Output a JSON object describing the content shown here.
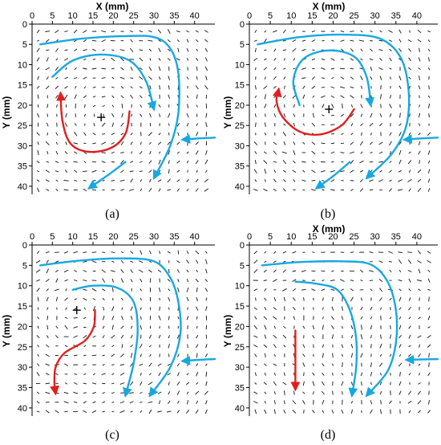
{
  "figure": {
    "x_axis_title": "X (mm)",
    "y_axis_title": "Y (mm)"
  },
  "chart_data": [
    {
      "type": "vector-field",
      "panel_label": "(a)",
      "xlabel": "X (mm)",
      "ylabel": "Y (mm)",
      "xlim": [
        0,
        45
      ],
      "ylim": [
        0,
        42
      ],
      "y_inverted": true,
      "grid": false,
      "x_ticks": [
        "0",
        "5",
        "10",
        "15",
        "20",
        "25",
        "30",
        "35",
        "40"
      ],
      "y_ticks": [
        "0",
        "5",
        "10",
        "15",
        "20",
        "25",
        "30",
        "35",
        "40"
      ],
      "vortex_center": [
        17,
        23
      ],
      "field_seed": 3,
      "streamlines": [
        {
          "color": "#18a8e0",
          "points": [
            [
              2,
              5
            ],
            [
              12,
              3.6
            ],
            [
              22,
              3
            ],
            [
              30,
              3.2
            ],
            [
              34,
              6
            ],
            [
              36,
              12
            ],
            [
              36,
              22
            ],
            [
              34,
              30
            ],
            [
              30,
              38
            ]
          ]
        },
        {
          "color": "#18a8e0",
          "points": [
            [
              5,
              13
            ],
            [
              10,
              9
            ],
            [
              17,
              7.5
            ],
            [
              24,
              9
            ],
            [
              28,
              14
            ],
            [
              30,
              21
            ]
          ]
        },
        {
          "color": "#18a8e0",
          "points": [
            [
              23,
              34
            ],
            [
              19,
              37
            ],
            [
              14,
              40.5
            ]
          ]
        },
        {
          "color": "#18a8e0",
          "points": [
            [
              45,
              28
            ],
            [
              41,
              28.2
            ],
            [
              37,
              28.5
            ]
          ]
        },
        {
          "color": "#e02020",
          "points": [
            [
              24,
              21.5
            ],
            [
              23,
              27
            ],
            [
              19.5,
              30.5
            ],
            [
              14,
              31.5
            ],
            [
              9.5,
              29.5
            ],
            [
              7.5,
              24
            ],
            [
              7,
              17
            ]
          ]
        }
      ]
    },
    {
      "type": "vector-field",
      "panel_label": "(b)",
      "xlabel": "X (mm)",
      "ylabel": "Y (mm)",
      "xlim": [
        0,
        45
      ],
      "ylim": [
        0,
        42
      ],
      "y_inverted": true,
      "grid": false,
      "x_ticks": [
        "0",
        "5",
        "10",
        "15",
        "20",
        "25",
        "30",
        "35",
        "40"
      ],
      "y_ticks": [
        "0",
        "5",
        "10",
        "15",
        "20",
        "25",
        "30",
        "35",
        "40"
      ],
      "vortex_center": [
        19,
        21
      ],
      "field_seed": 11,
      "streamlines": [
        {
          "color": "#18a8e0",
          "points": [
            [
              2,
              5
            ],
            [
              12,
              3.2
            ],
            [
              22,
              2.6
            ],
            [
              31,
              3.5
            ],
            [
              36,
              8
            ],
            [
              38,
              16
            ],
            [
              37.5,
              25
            ],
            [
              34,
              32
            ],
            [
              28,
              38
            ]
          ]
        },
        {
          "color": "#18a8e0",
          "points": [
            [
              12,
              20
            ],
            [
              10.5,
              14
            ],
            [
              13,
              8.5
            ],
            [
              19,
              6.5
            ],
            [
              25,
              8
            ],
            [
              28,
              13
            ],
            [
              29,
              20
            ]
          ]
        },
        {
          "color": "#18a8e0",
          "points": [
            [
              24,
              34
            ],
            [
              20,
              37.5
            ],
            [
              16,
              40.5
            ]
          ]
        },
        {
          "color": "#18a8e0",
          "points": [
            [
              45,
              28
            ],
            [
              41,
              28.2
            ],
            [
              37,
              28.5
            ]
          ]
        },
        {
          "color": "#e02020",
          "points": [
            [
              25,
              21
            ],
            [
              22,
              25
            ],
            [
              17,
              27.2
            ],
            [
              12,
              26.5
            ],
            [
              8,
              23
            ],
            [
              6.5,
              19
            ],
            [
              7,
              16
            ]
          ]
        }
      ]
    },
    {
      "type": "vector-field",
      "panel_label": "(c)",
      "xlabel": "",
      "ylabel": "Y (mm)",
      "xlim": [
        0,
        45
      ],
      "ylim": [
        0,
        42
      ],
      "y_inverted": true,
      "grid": false,
      "x_ticks": [
        "0",
        "5",
        "10",
        "15",
        "20",
        "25",
        "30",
        "35",
        "40"
      ],
      "y_ticks": [
        "0",
        "5",
        "10",
        "15",
        "20",
        "25",
        "30",
        "35",
        "40"
      ],
      "vortex_center": [
        11,
        16
      ],
      "field_seed": 23,
      "streamlines": [
        {
          "color": "#18a8e0",
          "points": [
            [
              2,
              5
            ],
            [
              12,
              3.8
            ],
            [
              22,
              3.3
            ],
            [
              30,
              4
            ],
            [
              34,
              8
            ],
            [
              36,
              14
            ],
            [
              36.5,
              22
            ],
            [
              34,
              30
            ],
            [
              29,
              37
            ]
          ]
        },
        {
          "color": "#18a8e0",
          "points": [
            [
              10,
              11
            ],
            [
              15,
              10
            ],
            [
              21,
              10.5
            ],
            [
              25,
              14
            ],
            [
              26,
              21
            ],
            [
              25,
              29
            ],
            [
              23,
              37
            ]
          ]
        },
        {
          "color": "#18a8e0",
          "points": [
            [
              45,
              28
            ],
            [
              41,
              28.2
            ],
            [
              37,
              28.5
            ]
          ]
        },
        {
          "color": "#e02020",
          "points": [
            [
              15.5,
              16
            ],
            [
              15.2,
              20
            ],
            [
              13,
              23.5
            ],
            [
              8,
              26.5
            ],
            [
              5.8,
              30
            ],
            [
              5.5,
              34
            ],
            [
              5.8,
              36.5
            ]
          ]
        }
      ]
    },
    {
      "type": "vector-field",
      "panel_label": "(d)",
      "xlabel": "X (mm)",
      "ylabel": "Y (mm)",
      "xlim": [
        0,
        45
      ],
      "ylim": [
        0,
        42
      ],
      "y_inverted": true,
      "grid": false,
      "x_ticks": [
        "0",
        "5",
        "10",
        "15",
        "20",
        "25",
        "30",
        "35",
        "40"
      ],
      "y_ticks": [
        "0",
        "5",
        "10",
        "15",
        "20",
        "25",
        "30",
        "35",
        "40"
      ],
      "vortex_center": null,
      "field_seed": 37,
      "streamlines": [
        {
          "color": "#18a8e0",
          "points": [
            [
              3,
              5
            ],
            [
              12,
              4.2
            ],
            [
              22,
              4
            ],
            [
              29,
              4.8
            ],
            [
              33,
              9
            ],
            [
              35,
              16
            ],
            [
              35,
              24
            ],
            [
              33,
              31
            ],
            [
              28,
              37
            ]
          ]
        },
        {
          "color": "#18a8e0",
          "points": [
            [
              11,
              9
            ],
            [
              16,
              9.5
            ],
            [
              21,
              11
            ],
            [
              24,
              16
            ],
            [
              25.5,
              23
            ],
            [
              25.5,
              30
            ],
            [
              24.5,
              37
            ]
          ]
        },
        {
          "color": "#18a8e0",
          "points": [
            [
              45,
              28
            ],
            [
              41,
              28.1
            ],
            [
              37.5,
              28.2
            ]
          ]
        },
        {
          "color": "#e02020",
          "points": [
            [
              11,
              21
            ],
            [
              11,
              27
            ],
            [
              11,
              35.5
            ]
          ]
        }
      ]
    }
  ]
}
